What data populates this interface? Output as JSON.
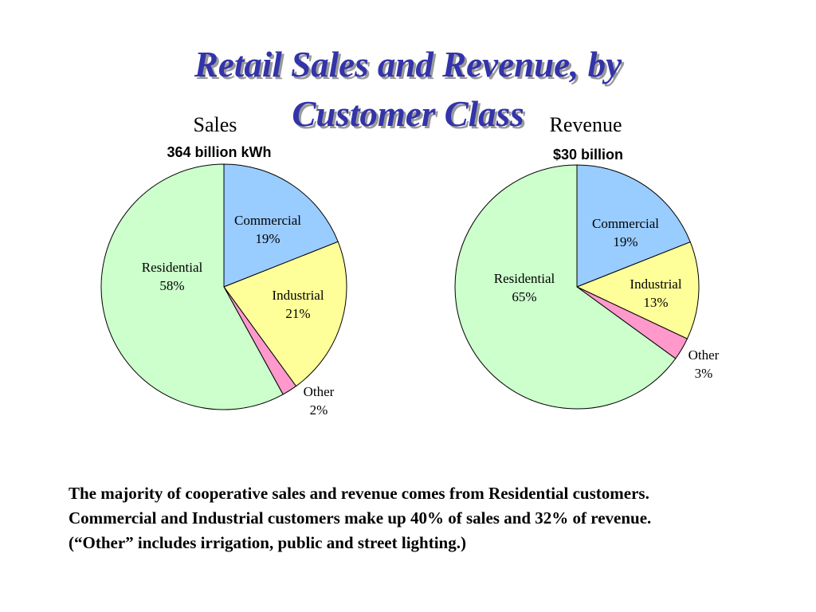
{
  "title": {
    "line1": "Retail Sales and Revenue, by",
    "line2": "Customer Class"
  },
  "colors": {
    "title": "#3333aa",
    "residential": "#ccffcc",
    "commercial": "#99ccff",
    "industrial": "#ffff99",
    "other": "#ff99cc"
  },
  "chart_data": [
    {
      "type": "pie",
      "title": "Sales",
      "subtitle": "364 billion kWh",
      "slices": [
        {
          "label": "Commercial",
          "value": 19,
          "value_label": "19%",
          "color": "#99ccff"
        },
        {
          "label": "Industrial",
          "value": 21,
          "value_label": "21%",
          "color": "#ffff99"
        },
        {
          "label": "Other",
          "value": 2,
          "value_label": "2%",
          "color": "#ff99cc"
        },
        {
          "label": "Residential",
          "value": 58,
          "value_label": "58%",
          "color": "#ccffcc"
        }
      ]
    },
    {
      "type": "pie",
      "title": "Revenue",
      "subtitle": "$30 billion",
      "slices": [
        {
          "label": "Commercial",
          "value": 19,
          "value_label": "19%",
          "color": "#99ccff"
        },
        {
          "label": "Industrial",
          "value": 13,
          "value_label": "13%",
          "color": "#ffff99"
        },
        {
          "label": "Other",
          "value": 3,
          "value_label": "3%",
          "color": "#ff99cc"
        },
        {
          "label": "Residential",
          "value": 65,
          "value_label": "65%",
          "color": "#ccffcc"
        }
      ]
    }
  ],
  "body_text": "The majority of cooperative sales and revenue comes from Residential customers.  Commercial and Industrial customers make up 40% of sales and 32% of revenue.  (“Other” includes irrigation, public and street lighting.)"
}
